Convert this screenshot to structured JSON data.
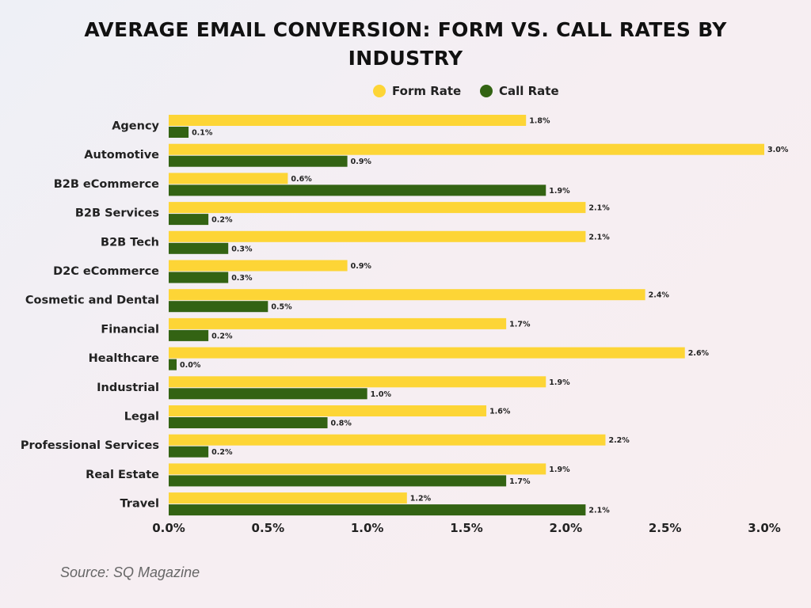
{
  "chart_data": {
    "type": "bar",
    "orientation": "horizontal",
    "title_lines": [
      "AVERAGE EMAIL CONVERSION: FORM VS. CALL RATES BY",
      "INDUSTRY"
    ],
    "categories": [
      "Agency",
      "Automotive",
      "B2B eCommerce",
      "B2B Services",
      "B2B Tech",
      "D2C eCommerce",
      "Cosmetic and Dental",
      "Financial",
      "Healthcare",
      "Industrial",
      "Legal",
      "Professional Services",
      "Real Estate",
      "Travel"
    ],
    "series": [
      {
        "name": "Form Rate",
        "color": "#fdd536",
        "values": [
          1.8,
          3.0,
          0.6,
          2.1,
          2.1,
          0.9,
          2.4,
          1.7,
          2.6,
          1.9,
          1.6,
          2.2,
          1.9,
          1.2
        ]
      },
      {
        "name": "Call Rate",
        "color": "#336313",
        "values": [
          0.1,
          0.9,
          1.9,
          0.2,
          0.3,
          0.3,
          0.5,
          0.2,
          0.0,
          1.0,
          0.8,
          0.2,
          1.7,
          2.1
        ]
      }
    ],
    "xlim": [
      0,
      3.0
    ],
    "xticks": [
      "0.0%",
      "0.5%",
      "1.0%",
      "1.5%",
      "2.0%",
      "2.5%",
      "3.0%"
    ],
    "value_suffix": "%",
    "legend": "top-center",
    "grid": false
  },
  "source": "Source: SQ Magazine"
}
